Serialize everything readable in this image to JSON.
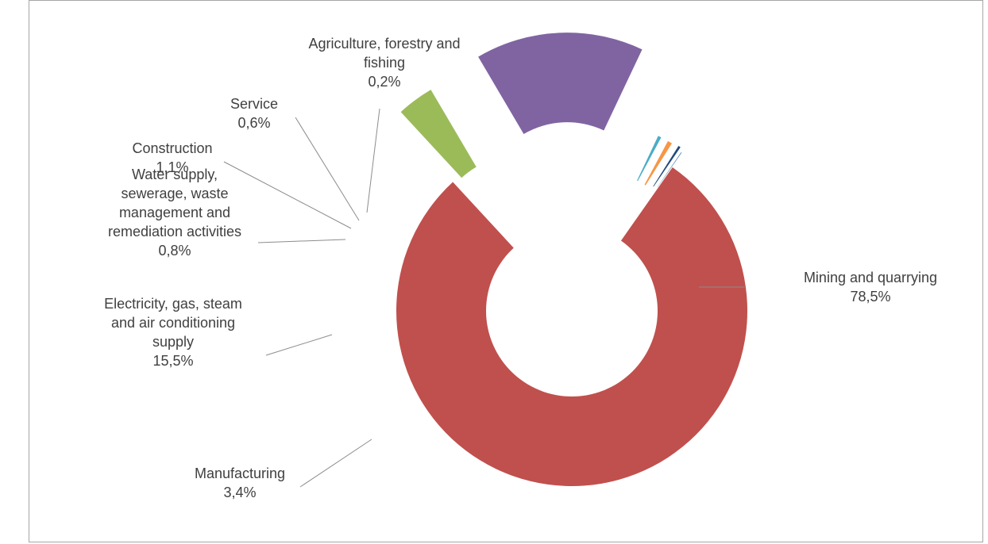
{
  "chart_data": {
    "type": "doughnut",
    "title": "",
    "legend": "none",
    "series": [
      {
        "name": "",
        "categories": [
          "Mining and quarrying",
          "Manufacturing",
          "Electricity, gas, steam and air conditioning supply",
          "Water supply, sewerage, waste management and remediation activities",
          "Construction",
          "Service",
          "Agriculture, forestry and fishing"
        ],
        "values": [
          78.5,
          3.4,
          15.5,
          0.8,
          1.1,
          0.6,
          0.2
        ],
        "value_labels": [
          "78,5%",
          "3,4%",
          "15,5%",
          "0,8%",
          "1,1%",
          "0,6%",
          "0,2%"
        ],
        "colors": [
          "#c0504d",
          "#9bbb59",
          "#8064a2",
          "#4bacc6",
          "#f79646",
          "#1f497d",
          "#4f81bd"
        ]
      }
    ],
    "data_labels": [
      {
        "lines": [
          "Mining and quarrying"
        ],
        "value": "78,5%"
      },
      {
        "lines": [
          "Manufacturing"
        ],
        "value": "3,4%"
      },
      {
        "lines": [
          "Electricity, gas, steam",
          "and air conditioning",
          "supply"
        ],
        "value": "15,5%"
      },
      {
        "lines": [
          "Water supply,",
          "sewerage, waste",
          "management and",
          "remediation activities"
        ],
        "value": "0,8%"
      },
      {
        "lines": [
          "Construction"
        ],
        "value": "1,1%"
      },
      {
        "lines": [
          "Service"
        ],
        "value": "0,6%"
      },
      {
        "lines": [
          "Agriculture, forestry and",
          "fishing"
        ],
        "value": "0,2%"
      }
    ]
  }
}
